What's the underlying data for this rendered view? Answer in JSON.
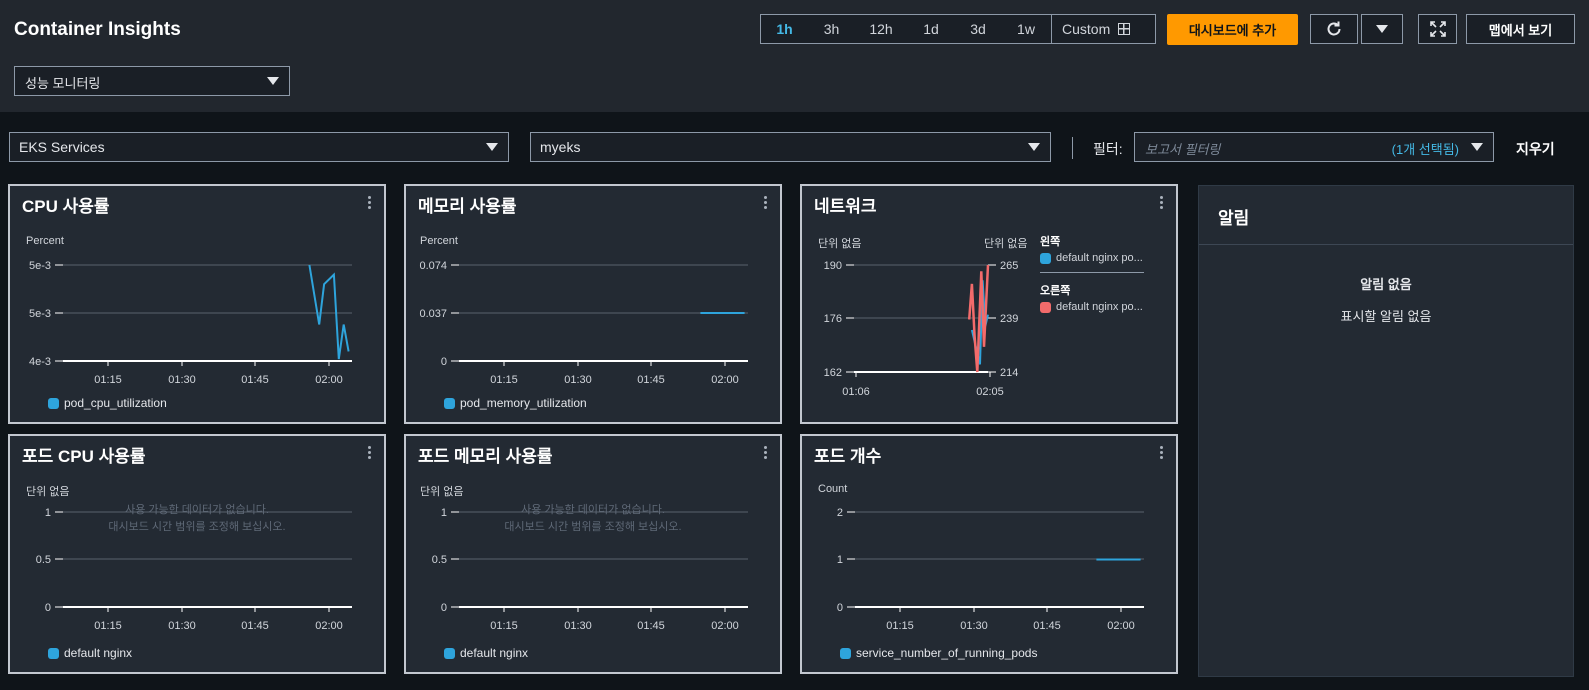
{
  "header": {
    "title": "Container Insights",
    "mode": "성능 모니터링",
    "ranges": [
      "1h",
      "3h",
      "12h",
      "1d",
      "3d",
      "1w"
    ],
    "active_range": "1h",
    "custom": "Custom",
    "add_dashboard": "대시보드에 추가",
    "view_map": "맵에서 보기"
  },
  "filters": {
    "resource_type": "EKS Services",
    "cluster": "myeks",
    "filter_label": "필터:",
    "report_placeholder": "보고서 필터링",
    "selected_count": "(1개 선택됨)",
    "clear": "지우기"
  },
  "colors": {
    "accent": "#ff9900",
    "blue": "#2ea4dc",
    "red": "#f26b6b",
    "link": "#44b9e6"
  },
  "panels": {
    "cpu": {
      "title": "CPU 사용률",
      "unit": "Percent",
      "legend": "pod_cpu_utilization"
    },
    "memory": {
      "title": "메모리 사용률",
      "unit": "Percent",
      "legend": "pod_memory_utilization"
    },
    "network": {
      "title": "네트워크",
      "unit_left": "단위 없음",
      "unit_right": "단위 없음",
      "legend_left_head": "왼쪽",
      "legend_left": "default nginx po...",
      "legend_right_head": "오른쪽",
      "legend_right": "default nginx po..."
    },
    "pod_cpu": {
      "title": "포드 CPU 사용률",
      "unit": "단위 없음",
      "legend": "default nginx",
      "nodata_1": "사용 가능한 데이터가 없습니다.",
      "nodata_2": "대시보드 시간 범위를 조정해 보십시오."
    },
    "pod_memory": {
      "title": "포드 메모리 사용률",
      "unit": "단위 없음",
      "legend": "default nginx",
      "nodata_1": "사용 가능한 데이터가 없습니다.",
      "nodata_2": "대시보드 시간 범위를 조정해 보십시오."
    },
    "pod_count": {
      "title": "포드 개수",
      "unit": "Count",
      "legend": "service_number_of_running_pods"
    }
  },
  "alarms": {
    "title": "알림",
    "empty_title": "알림 없음",
    "empty_text": "표시할 알림 없음"
  },
  "chart_data": [
    {
      "id": "cpu",
      "type": "line",
      "x_ticks": [
        "01:15",
        "01:30",
        "01:45",
        "02:00"
      ],
      "y_ticks": [
        "5e-3",
        "5e-3",
        "4e-3"
      ],
      "xlim": [
        "01:04",
        "02:04"
      ],
      "ylabel": "Percent",
      "series": [
        {
          "name": "pod_cpu_utilization",
          "x": [
            "01:56",
            "01:58",
            "01:59",
            "02:01",
            "02:02",
            "02:03",
            "02:04"
          ],
          "y": [
            1.0,
            0.38,
            0.8,
            0.9,
            0.02,
            0.38,
            0.1
          ]
        }
      ]
    },
    {
      "id": "memory",
      "type": "line",
      "x_ticks": [
        "01:15",
        "01:30",
        "01:45",
        "02:00"
      ],
      "y_ticks": [
        "0.074",
        "0.037",
        "0"
      ],
      "ylim": [
        0,
        0.074
      ],
      "xlim": [
        "01:04",
        "02:04"
      ],
      "ylabel": "Percent",
      "series": [
        {
          "name": "pod_memory_utilization",
          "x": [
            "01:55",
            "02:04"
          ],
          "y": [
            0.037,
            0.037
          ]
        }
      ]
    },
    {
      "id": "network",
      "type": "line",
      "x_ticks": [
        "01:06",
        "02:05"
      ],
      "y_ticks_left": [
        "190",
        "176",
        "162"
      ],
      "y_ticks_right": [
        "265",
        "239",
        "214"
      ],
      "ylim_left": [
        162,
        190
      ],
      "ylim_right": [
        214,
        265
      ],
      "series": [
        {
          "name": "default nginx po...",
          "axis": "left",
          "x": [
            0.88,
            0.94,
            0.96,
            0.98,
            1.0
          ],
          "y": [
            173,
            164,
            186,
            174,
            177
          ]
        },
        {
          "name": "default nginx po...",
          "axis": "right",
          "x": [
            0.86,
            0.88,
            0.9,
            0.92,
            0.95,
            0.97,
            1.0
          ],
          "y": [
            239,
            256,
            231,
            214,
            262,
            226,
            265
          ]
        }
      ]
    },
    {
      "id": "pod_cpu",
      "type": "line",
      "x_ticks": [
        "01:15",
        "01:30",
        "01:45",
        "02:00"
      ],
      "y_ticks": [
        "1",
        "0.5",
        "0"
      ],
      "ylabel": "단위 없음",
      "series": [
        {
          "name": "default nginx",
          "x": [],
          "y": []
        }
      ]
    },
    {
      "id": "pod_memory",
      "type": "line",
      "x_ticks": [
        "01:15",
        "01:30",
        "01:45",
        "02:00"
      ],
      "y_ticks": [
        "1",
        "0.5",
        "0"
      ],
      "ylabel": "단위 없음",
      "series": [
        {
          "name": "default nginx",
          "x": [],
          "y": []
        }
      ]
    },
    {
      "id": "pod_count",
      "type": "line",
      "x_ticks": [
        "01:15",
        "01:30",
        "01:45",
        "02:00"
      ],
      "y_ticks": [
        "2",
        "1",
        "0"
      ],
      "ylim": [
        0,
        2
      ],
      "xlim": [
        "01:04",
        "02:04"
      ],
      "ylabel": "Count",
      "series": [
        {
          "name": "service_number_of_running_pods",
          "x": [
            "01:55",
            "02:04"
          ],
          "y": [
            1,
            1
          ]
        }
      ]
    }
  ]
}
